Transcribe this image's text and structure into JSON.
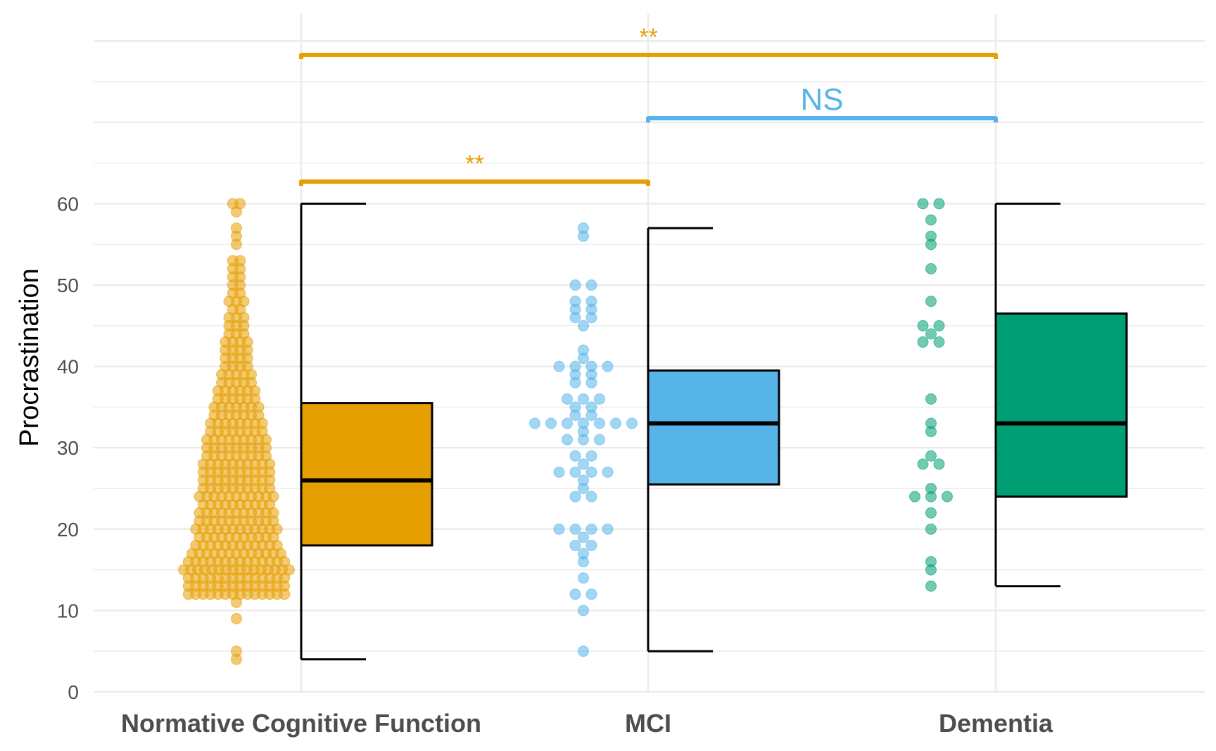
{
  "chart_data": {
    "type": "box",
    "ylabel": "Procrastination",
    "ylim": [
      0,
      60
    ],
    "y_ticks": [
      0,
      10,
      20,
      30,
      40,
      50,
      60
    ],
    "grid": true,
    "categories": [
      "Normative Cognitive Function",
      "MCI",
      "Dementia"
    ],
    "colors": [
      "#E69F00",
      "#56B4E9",
      "#009E73"
    ],
    "boxes": [
      {
        "min": 4,
        "q1": 18,
        "median": 26,
        "q3": 35.5,
        "max": 60
      },
      {
        "min": 5,
        "q1": 25.5,
        "median": 33,
        "q3": 39.5,
        "max": 57
      },
      {
        "min": 13,
        "q1": 24,
        "median": 33,
        "q3": 46.5,
        "max": 60
      }
    ],
    "points": [
      [
        4,
        5,
        9,
        11,
        12,
        12,
        12,
        12,
        12,
        12,
        12,
        12,
        12,
        12,
        12,
        12,
        12,
        12,
        13,
        13,
        13,
        13,
        13,
        13,
        13,
        13,
        13,
        13,
        13,
        13,
        13,
        13,
        14,
        14,
        14,
        14,
        14,
        14,
        14,
        14,
        14,
        14,
        14,
        14,
        14,
        14,
        15,
        15,
        15,
        15,
        15,
        15,
        15,
        15,
        15,
        15,
        15,
        15,
        15,
        15,
        15,
        15,
        16,
        16,
        16,
        16,
        16,
        16,
        16,
        16,
        16,
        16,
        16,
        16,
        16,
        16,
        17,
        17,
        17,
        17,
        17,
        17,
        17,
        17,
        17,
        17,
        17,
        17,
        17,
        18,
        18,
        18,
        18,
        18,
        18,
        18,
        18,
        18,
        18,
        18,
        18,
        19,
        19,
        19,
        19,
        19,
        19,
        19,
        19,
        19,
        19,
        19,
        20,
        20,
        20,
        20,
        20,
        20,
        20,
        20,
        20,
        20,
        20,
        20,
        21,
        21,
        21,
        21,
        21,
        21,
        21,
        21,
        21,
        21,
        21,
        22,
        22,
        22,
        22,
        22,
        22,
        22,
        22,
        22,
        22,
        22,
        23,
        23,
        23,
        23,
        23,
        23,
        23,
        23,
        23,
        23,
        24,
        24,
        24,
        24,
        24,
        24,
        24,
        24,
        24,
        24,
        24,
        25,
        25,
        25,
        25,
        25,
        25,
        25,
        25,
        25,
        25,
        26,
        26,
        26,
        26,
        26,
        26,
        26,
        26,
        26,
        26,
        27,
        27,
        27,
        27,
        27,
        27,
        27,
        27,
        27,
        27,
        28,
        28,
        28,
        28,
        28,
        28,
        28,
        28,
        28,
        28,
        29,
        29,
        29,
        29,
        29,
        29,
        29,
        29,
        29,
        30,
        30,
        30,
        30,
        30,
        30,
        30,
        30,
        30,
        31,
        31,
        31,
        31,
        31,
        31,
        31,
        31,
        31,
        32,
        32,
        32,
        32,
        32,
        32,
        32,
        32,
        33,
        33,
        33,
        33,
        33,
        33,
        33,
        33,
        34,
        34,
        34,
        34,
        34,
        34,
        34,
        35,
        35,
        35,
        35,
        35,
        35,
        35,
        36,
        36,
        36,
        36,
        36,
        36,
        37,
        37,
        37,
        37,
        37,
        37,
        38,
        38,
        38,
        38,
        38,
        39,
        39,
        39,
        39,
        39,
        40,
        40,
        40,
        40,
        41,
        41,
        41,
        41,
        42,
        42,
        42,
        42,
        43,
        43,
        43,
        43,
        44,
        44,
        44,
        45,
        45,
        45,
        46,
        46,
        46,
        47,
        47,
        48,
        48,
        48,
        49,
        49,
        50,
        50,
        51,
        51,
        52,
        52,
        53,
        53,
        55,
        56,
        57,
        59,
        60,
        60
      ],
      [
        5,
        10,
        12,
        12,
        14,
        16,
        17,
        18,
        18,
        19,
        20,
        20,
        20,
        20,
        24,
        24,
        25,
        26,
        27,
        27,
        27,
        27,
        28,
        29,
        29,
        31,
        31,
        31,
        32,
        33,
        33,
        33,
        33,
        33,
        33,
        33,
        34,
        34,
        35,
        35,
        36,
        36,
        36,
        38,
        38,
        39,
        39,
        40,
        40,
        40,
        40,
        41,
        42,
        45,
        46,
        46,
        47,
        47,
        48,
        48,
        50,
        50,
        56,
        57
      ],
      [
        13,
        15,
        16,
        20,
        22,
        24,
        24,
        24,
        25,
        28,
        28,
        29,
        32,
        33,
        36,
        43,
        43,
        44,
        45,
        45,
        48,
        52,
        55,
        56,
        58,
        60,
        60
      ]
    ],
    "significance": [
      {
        "from": 0,
        "to": 2,
        "label": "**",
        "color": "#E69F00"
      },
      {
        "from": 1,
        "to": 2,
        "label": "NS",
        "color": "#56B4E9"
      },
      {
        "from": 0,
        "to": 1,
        "label": "**",
        "color": "#E69F00"
      }
    ]
  }
}
